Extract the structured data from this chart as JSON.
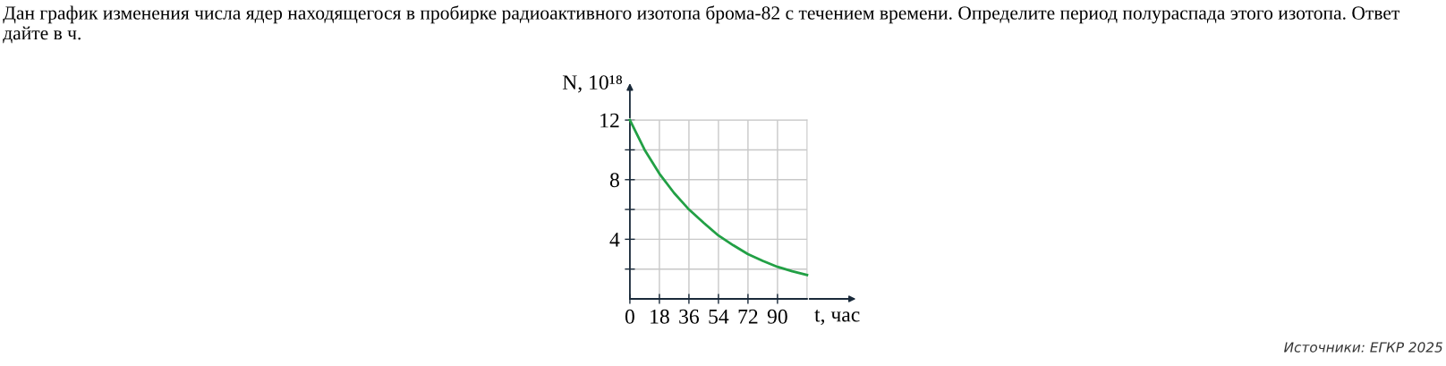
{
  "chart_data": {
    "type": "line",
    "title": "Дан график изменения числа ядер находящегося в пробирке радиоактивного изотопа брома-82 с течением времени. Определите период полураспада этого изотопа. Ответ дайте в ч.",
    "xlabel": "t, час",
    "ylabel": "N, 10¹⁸",
    "x": [
      0,
      9,
      18,
      27,
      36,
      45,
      54,
      63,
      72,
      81,
      90,
      99,
      108
    ],
    "series": [
      {
        "color": "#22a045",
        "values": [
          12,
          10.0,
          8.4,
          7.1,
          6.0,
          5.1,
          4.25,
          3.6,
          3.0,
          2.55,
          2.15,
          1.85,
          1.6
        ]
      }
    ],
    "xlim": [
      0,
      108
    ],
    "ylim": [
      0,
      12
    ],
    "xticks": [
      0,
      18,
      36,
      54,
      72,
      90
    ],
    "yticks": [
      {
        "value": 2,
        "label": null
      },
      4,
      {
        "value": 6,
        "label": null
      },
      8,
      {
        "value": 10,
        "label": null
      },
      12
    ],
    "grid": true,
    "marker": "none",
    "line_style": "solid",
    "annotations": [
      "Источники: ЕГКР 2025"
    ]
  }
}
